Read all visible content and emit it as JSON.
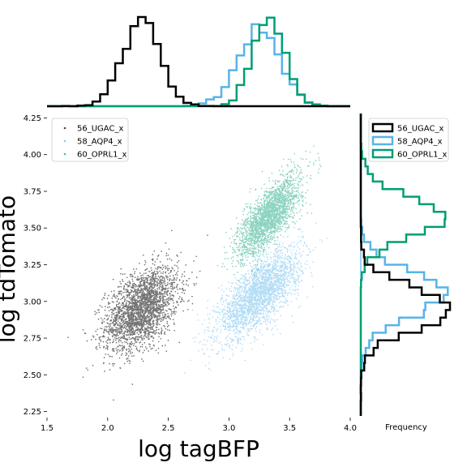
{
  "chart_data": {
    "type": "scatter",
    "title": "",
    "xlabel": "log tagBFP",
    "ylabel": "log tdTomato",
    "xlim": [
      1.5,
      4.0
    ],
    "ylim": [
      2.22,
      4.28
    ],
    "x_ticks": [
      "1.5",
      "2.0",
      "2.5",
      "3.0",
      "3.5",
      "4.0"
    ],
    "y_ticks": [
      "2.25",
      "2.50",
      "2.75",
      "3.00",
      "3.25",
      "3.50",
      "3.75",
      "4.00",
      "4.25"
    ],
    "x_tick_values": [
      1.5,
      2.0,
      2.5,
      3.0,
      3.5,
      4.0
    ],
    "y_tick_values": [
      2.25,
      2.5,
      2.75,
      3.0,
      3.25,
      3.5,
      3.75,
      4.0,
      4.25
    ],
    "marginal_xlabel": "Frequency",
    "grid": false,
    "legend_scatter": "top-left",
    "legend_hist": "top-right",
    "series": [
      {
        "name": "56_UGAC_x",
        "color": "#000000",
        "x_center": 2.28,
        "y_center": 2.95,
        "x_sd": 0.15,
        "y_sd": 0.14,
        "correlation": 0.45,
        "n_points": 2600
      },
      {
        "name": "58_AQP4_x",
        "color": "#56b4e9",
        "x_center": 3.25,
        "y_center": 3.05,
        "x_sd": 0.17,
        "y_sd": 0.15,
        "correlation": 0.7,
        "n_points": 2600
      },
      {
        "name": "60_OPRL1_x",
        "color": "#009e73",
        "x_center": 3.33,
        "y_center": 3.58,
        "x_sd": 0.13,
        "y_sd": 0.14,
        "correlation": 0.75,
        "n_points": 2300
      }
    ]
  }
}
